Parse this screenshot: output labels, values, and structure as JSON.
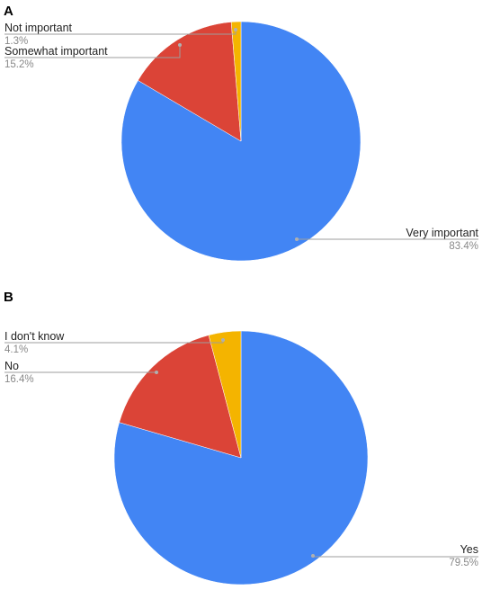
{
  "chart_data": [
    {
      "panel": "A",
      "type": "pie",
      "start_angle_deg": 0,
      "direction": "clockwise",
      "slices": [
        {
          "label": "Very important",
          "value": 83.4,
          "display": "83.4%",
          "color": "#4285f4"
        },
        {
          "label": "Somewhat important",
          "value": 15.2,
          "display": "15.2%",
          "color": "#db4437"
        },
        {
          "label": "Not important",
          "value": 1.3,
          "display": "1.3%",
          "color": "#f4b400"
        }
      ]
    },
    {
      "panel": "B",
      "type": "pie",
      "start_angle_deg": 0,
      "direction": "clockwise",
      "slices": [
        {
          "label": "Yes",
          "value": 79.5,
          "display": "79.5%",
          "color": "#4285f4"
        },
        {
          "label": "No",
          "value": 16.4,
          "display": "16.4%",
          "color": "#db4437"
        },
        {
          "label": "I don't know",
          "value": 4.1,
          "display": "4.1%",
          "color": "#f4b400"
        }
      ]
    }
  ],
  "leader_line_color": "#9e9e9e"
}
